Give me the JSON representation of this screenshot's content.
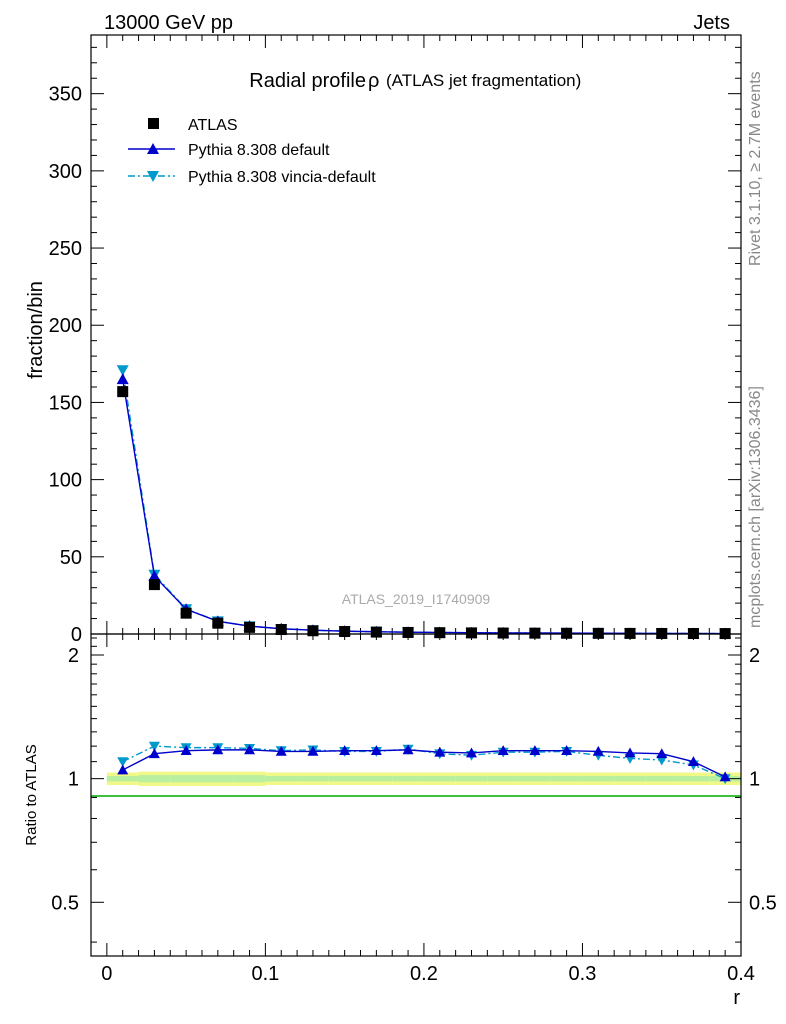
{
  "header": {
    "left": "13000 GeV pp",
    "right": "Jets"
  },
  "side_labels": {
    "rivet": "Rivet 3.1.10, ≥ 2.7M events",
    "mcplots": "mcplots.cern.ch [arXiv:1306.3436]"
  },
  "watermark": "ATLAS_2019_I1740909",
  "colors": {
    "atlas": "#000000",
    "pythia_default": "#0000cc",
    "pythia_vincia": "#0099cc",
    "band_outer": "#f0f888",
    "band_inner": "#b8f0a0",
    "ratio_line": "#00aa00"
  },
  "chart_data": [
    {
      "type": "scatter",
      "title_main": "Radial profile",
      "title_symbol": "ρ",
      "title_sub": "(ATLAS jet fragmentation)",
      "xlabel": "",
      "ylabel": "fraction/bin",
      "xlim": [
        -0.01,
        0.4
      ],
      "ylim": [
        0,
        388
      ],
      "yticks": [
        0,
        50,
        100,
        150,
        200,
        250,
        300,
        350
      ],
      "grid": false,
      "legend_position": "top-left",
      "x": [
        0.01,
        0.03,
        0.05,
        0.07,
        0.09,
        0.11,
        0.13,
        0.15,
        0.17,
        0.19,
        0.21,
        0.23,
        0.25,
        0.27,
        0.29,
        0.31,
        0.33,
        0.35,
        0.37,
        0.39
      ],
      "series": [
        {
          "name": "ATLAS",
          "marker": "square",
          "values": [
            157,
            32,
            13.5,
            7,
            4.3,
            2.9,
            2.1,
            1.6,
            1.25,
            1.0,
            0.85,
            0.72,
            0.62,
            0.55,
            0.48,
            0.43,
            0.38,
            0.34,
            0.31,
            0.28
          ]
        },
        {
          "name": "Pythia 8.308 default",
          "marker": "triangle-up",
          "line": "solid",
          "values": [
            165,
            37.5,
            16,
            8.2,
            5.1,
            3.4,
            2.45,
            1.85,
            1.45,
            1.17,
            0.98,
            0.83,
            0.72,
            0.64,
            0.56,
            0.5,
            0.44,
            0.39,
            0.35,
            0.28
          ]
        },
        {
          "name": "Pythia 8.308 vincia-default",
          "marker": "triangle-down",
          "line": "dash-dot",
          "values": [
            171,
            38.5,
            16.2,
            8.3,
            5.1,
            3.4,
            2.45,
            1.85,
            1.45,
            1.17,
            0.97,
            0.82,
            0.72,
            0.64,
            0.56,
            0.49,
            0.43,
            0.38,
            0.34,
            0.28
          ]
        }
      ]
    },
    {
      "type": "line",
      "xlabel": "r",
      "ylabel": "Ratio to ATLAS",
      "xlim": [
        -0.01,
        0.4
      ],
      "ylim": [
        0.37,
        2.25
      ],
      "xticks": [
        0,
        0.1,
        0.2,
        0.3,
        0.4
      ],
      "xtick_labels": [
        "0",
        "0.1",
        "0.2",
        "0.3",
        "0.4"
      ],
      "yticks": [
        0.5,
        1,
        2
      ],
      "ytick_labels": [
        "0.5",
        "1",
        "2"
      ],
      "grid": false,
      "x": [
        0.01,
        0.03,
        0.05,
        0.07,
        0.09,
        0.11,
        0.13,
        0.15,
        0.17,
        0.19,
        0.21,
        0.23,
        0.25,
        0.27,
        0.29,
        0.31,
        0.33,
        0.35,
        0.37,
        0.39
      ],
      "band_outer": [
        0.035,
        0.04,
        0.04,
        0.04,
        0.04,
        0.035,
        0.035,
        0.035,
        0.035,
        0.035,
        0.035,
        0.035,
        0.035,
        0.035,
        0.035,
        0.035,
        0.035,
        0.035,
        0.035,
        0.035
      ],
      "band_inner": [
        0.015,
        0.02,
        0.02,
        0.02,
        0.02,
        0.015,
        0.015,
        0.015,
        0.015,
        0.015,
        0.015,
        0.015,
        0.015,
        0.015,
        0.015,
        0.015,
        0.015,
        0.015,
        0.015,
        0.015
      ],
      "series": [
        {
          "name": "Pythia 8.308 default",
          "line": "solid",
          "values": [
            1.05,
            1.15,
            1.17,
            1.175,
            1.175,
            1.165,
            1.165,
            1.17,
            1.17,
            1.175,
            1.16,
            1.155,
            1.17,
            1.17,
            1.17,
            1.165,
            1.155,
            1.15,
            1.1,
            1.01
          ]
        },
        {
          "name": "Pythia 8.308 vincia-default",
          "line": "dash-dot",
          "values": [
            1.1,
            1.2,
            1.19,
            1.19,
            1.185,
            1.17,
            1.175,
            1.165,
            1.165,
            1.18,
            1.15,
            1.14,
            1.16,
            1.16,
            1.165,
            1.14,
            1.12,
            1.11,
            1.08,
            1.0
          ]
        }
      ]
    }
  ]
}
